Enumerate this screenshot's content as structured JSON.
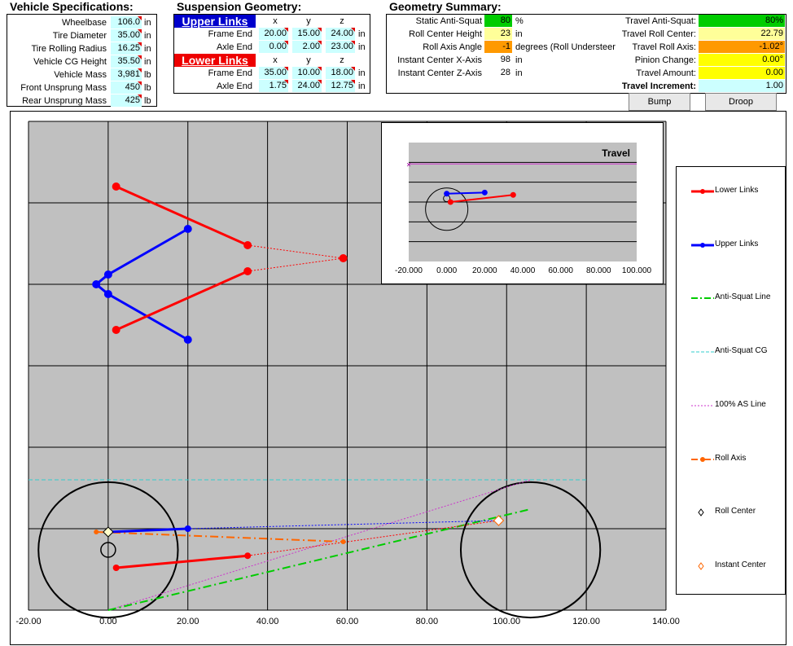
{
  "vehicle": {
    "title": "Vehicle Specifications:",
    "rows": [
      {
        "label": "Wheelbase",
        "value": "106.0",
        "unit": "in"
      },
      {
        "label": "Tire Diameter",
        "value": "35.00",
        "unit": "in"
      },
      {
        "label": "Tire Rolling Radius",
        "value": "16.25",
        "unit": "in"
      },
      {
        "label": "Vehicle CG Height",
        "value": "35.50",
        "unit": "in"
      },
      {
        "label": "Vehicle Mass",
        "value": "3,981",
        "unit": "lb"
      },
      {
        "label": "Front Unsprung Mass",
        "value": "450",
        "unit": "lb"
      },
      {
        "label": "Rear Unsprung Mass",
        "value": "425",
        "unit": "lb"
      }
    ]
  },
  "suspension": {
    "title": "Suspension Geometry:",
    "upper_title": "Upper Links",
    "lower_title": "Lower Links",
    "cols": [
      "x",
      "y",
      "z"
    ],
    "upper": [
      {
        "label": "Frame End",
        "x": "20.00",
        "y": "15.00",
        "z": "24.00",
        "unit": "in"
      },
      {
        "label": "Axle End",
        "x": "0.00",
        "y": "2.00",
        "z": "23.00",
        "unit": "in"
      }
    ],
    "lower": [
      {
        "label": "Frame End",
        "x": "35.00",
        "y": "10.00",
        "z": "18.00",
        "unit": "in"
      },
      {
        "label": "Axle End",
        "x": "1.75",
        "y": "24.00",
        "z": "12.75",
        "unit": "in"
      }
    ]
  },
  "summary": {
    "title": "Geometry Summary:",
    "left": [
      {
        "label": "Static Anti-Squat",
        "value": "80",
        "unit": "%",
        "color": "#00cc00"
      },
      {
        "label": "Roll Center Height",
        "value": "23",
        "unit": "in",
        "color": "#ffff99"
      },
      {
        "label": "Roll Axis Angle",
        "value": "-1",
        "unit": "degrees (Roll Understeer",
        "color": "#ff9900"
      },
      {
        "label": "Instant Center X-Axis",
        "value": "98",
        "unit": "in",
        "color": "#ffffff"
      },
      {
        "label": "Instant Center Z-Axis",
        "value": "28",
        "unit": "in",
        "color": "#ffffff"
      }
    ],
    "right": [
      {
        "label": "Travel Anti-Squat:",
        "value": "80%",
        "color": "#00cc00"
      },
      {
        "label": "Travel Roll Center:",
        "value": "22.79",
        "color": "#ffff99"
      },
      {
        "label": "Travel Roll Axis:",
        "value": "-1.02°",
        "color": "#ff9900"
      },
      {
        "label": "Pinion Change:",
        "value": "0.00°",
        "color": "#ffff00"
      },
      {
        "label": "Travel Amount:",
        "value": "0.00",
        "color": "#ffff00"
      },
      {
        "label": "Travel Increment:",
        "value": "1.00",
        "color": "#ccffff"
      }
    ]
  },
  "buttons": {
    "bump": "Bump",
    "droop": "Droop"
  },
  "main_chart": {
    "x_ticks": [
      "-20.00",
      "0.00",
      "20.00",
      "40.00",
      "60.00",
      "80.00",
      "100.00",
      "120.00",
      "140.00"
    ],
    "x_tick_values": [
      -20,
      0,
      20,
      40,
      60,
      80,
      100,
      120,
      140
    ]
  },
  "inset_chart": {
    "title": "Travel",
    "x_ticks": [
      "-20.000",
      "0.000",
      "20.000",
      "40.000",
      "60.000",
      "80.000",
      "100.000"
    ],
    "x_tick_values": [
      -20,
      0,
      20,
      40,
      60,
      80,
      100
    ]
  },
  "legend": [
    {
      "label": "Lower Links",
      "color": "#ff0000",
      "style": "solid-dot"
    },
    {
      "label": "Upper Links",
      "color": "#0000ff",
      "style": "solid-dot"
    },
    {
      "label": "Anti-Squat Line",
      "color": "#00cc00",
      "style": "dashdot"
    },
    {
      "label": "Anti-Squat CG",
      "color": "#33cccc",
      "style": "dash"
    },
    {
      "label": "100% AS Line",
      "color": "#cc33cc",
      "style": "dot"
    },
    {
      "label": "Roll Axis",
      "color": "#ff6600",
      "style": "dashdot-dot"
    },
    {
      "label": "Roll Center",
      "color": "#000000",
      "style": "diamond"
    },
    {
      "label": "Instant Center",
      "color": "#ff6600",
      "style": "diamond"
    }
  ],
  "chart_data": [
    {
      "type": "scatter",
      "title": "",
      "xlabel": "",
      "ylabel": "",
      "xlim": [
        -20,
        140
      ],
      "grid": true,
      "legend_position": "right",
      "top_view": {
        "upper_links": [
          {
            "name": "Upper Links",
            "points": [
              [
                20,
                67
              ],
              [
                0,
                53
              ],
              [
                -3,
                50
              ],
              [
                0,
                47
              ],
              [
                20,
                33
              ]
            ]
          }
        ],
        "lower_links": [
          {
            "name": "Lower Links",
            "points": [
              [
                2,
                80
              ],
              [
                35,
                62
              ]
            ]
          },
          {
            "name": "Lower Links",
            "points": [
              [
                2,
                36
              ],
              [
                35,
                54
              ]
            ]
          }
        ],
        "projection_point": [
          59,
          58
        ]
      },
      "side_view": {
        "tire_left": {
          "center": [
            0,
            8.5
          ],
          "radius": 17.5
        },
        "tire_right": {
          "center": [
            106,
            8.5
          ],
          "radius": 17.5
        },
        "axle_marker": [
          0,
          8.5
        ],
        "upper_link": [
          [
            0,
            14
          ],
          [
            20,
            15
          ]
        ],
        "lower_link": [
          [
            2,
            3
          ],
          [
            35,
            6.7
          ]
        ],
        "instant_center": [
          98,
          17.5
        ],
        "roll_center": [
          0,
          14
        ],
        "roll_axis": [
          [
            -3,
            14
          ],
          [
            59,
            11
          ]
        ],
        "anti_squat_line": [
          [
            0,
            -10
          ],
          [
            106,
            21
          ]
        ],
        "hundred_pct_as_line": [
          [
            0,
            -10
          ],
          [
            106,
            30
          ]
        ],
        "anti_squat_cg": 30
      }
    },
    {
      "type": "scatter",
      "title": "Travel",
      "xlim": [
        -20,
        100
      ],
      "upper_link": [
        [
          0,
          57
        ],
        [
          20,
          58
        ]
      ],
      "lower_link": [
        [
          2,
          50
        ],
        [
          35,
          56
        ]
      ],
      "axle": [
        0,
        53
      ],
      "horizon_marker": [
        -20,
        82
      ]
    }
  ]
}
